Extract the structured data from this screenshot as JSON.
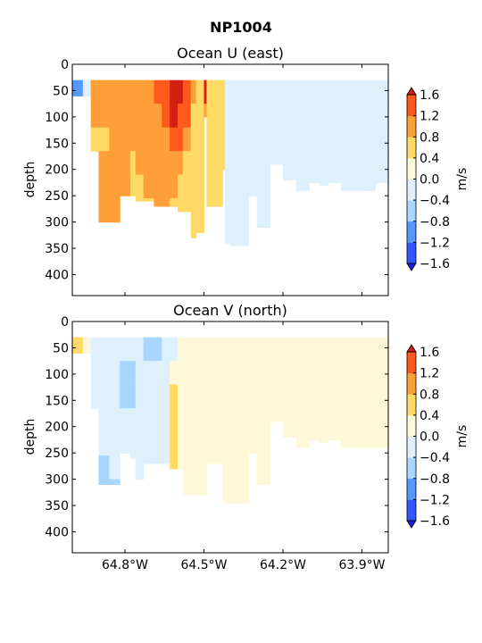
{
  "figure": {
    "suptitle": "NP1004"
  },
  "colors": {
    "levels": [
      -1.6,
      -1.2,
      -0.8,
      -0.4,
      0.0,
      0.4,
      0.8,
      1.2,
      1.6
    ],
    "bands": [
      "#3355ff",
      "#5599ff",
      "#a8d6ff",
      "#ddf0fb",
      "#fff8d8",
      "#ffd966",
      "#ff9f38",
      "#ff5a1c"
    ],
    "under": "#2020dd",
    "over": "#d42010"
  },
  "chart_data": [
    {
      "type": "heatmap",
      "title": "Ocean U (east)",
      "ylabel": "depth",
      "xlabel": "",
      "xlim": [
        -65.0,
        -63.8
      ],
      "ylim": [
        440,
        0
      ],
      "xticks": [
        "64.8°W",
        "64.5°W",
        "64.2°W",
        "63.9°W"
      ],
      "xtick_values": [
        -64.8,
        -64.5,
        -64.2,
        -63.9
      ],
      "yticks": [
        0,
        50,
        100,
        150,
        200,
        250,
        300,
        350,
        400
      ],
      "colorbar": {
        "label": "m/s",
        "ticks": [
          "1.6",
          "1.2",
          "0.8",
          "0.4",
          "0.0",
          "−0.4",
          "−0.8",
          "−1.2",
          "−1.6"
        ]
      },
      "columns": [
        {
          "x0": -65.0,
          "x1": -64.96,
          "depth": 60,
          "values": [
            -1.0
          ]
        },
        {
          "x0": -64.96,
          "x1": -64.93,
          "depth": 60,
          "values": [
            -0.2
          ]
        },
        {
          "x0": -64.93,
          "x1": -64.9,
          "depth": 165,
          "values": [
            1.0,
            0.9,
            0.5,
            0.5
          ]
        },
        {
          "x0": -64.9,
          "x1": -64.86,
          "depth": 300,
          "values": [
            1.0,
            1.0,
            0.6,
            1.0,
            1.0,
            0.9,
            1.0
          ]
        },
        {
          "x0": -64.86,
          "x1": -64.82,
          "depth": 300,
          "values": [
            1.0,
            1.0,
            1.0,
            1.0,
            1.0,
            1.0,
            1.0
          ]
        },
        {
          "x0": -64.82,
          "x1": -64.78,
          "depth": 250,
          "values": [
            0.9,
            1.0,
            1.0,
            1.0,
            1.0,
            0.9
          ]
        },
        {
          "x0": -64.78,
          "x1": -64.76,
          "depth": 250,
          "values": [
            0.9,
            1.0,
            1.0,
            0.5,
            0.5,
            0.5
          ]
        },
        {
          "x0": -64.76,
          "x1": -64.73,
          "depth": 260,
          "values": [
            1.0,
            1.0,
            1.0,
            1.0,
            0.5,
            0.5
          ]
        },
        {
          "x0": -64.73,
          "x1": -64.69,
          "depth": 260,
          "values": [
            1.0,
            1.0,
            1.0,
            1.0,
            1.0,
            0.5
          ]
        },
        {
          "x0": -64.69,
          "x1": -64.66,
          "depth": 270,
          "values": [
            1.4,
            1.0,
            1.0,
            1.0,
            1.0,
            1.0
          ]
        },
        {
          "x0": -64.66,
          "x1": -64.63,
          "depth": 270,
          "values": [
            1.5,
            1.4,
            1.0,
            1.0,
            1.0,
            1.0
          ]
        },
        {
          "x0": -64.63,
          "x1": -64.6,
          "depth": 270,
          "values": [
            1.7,
            1.7,
            1.4,
            1.0,
            1.0,
            0.5
          ]
        },
        {
          "x0": -64.6,
          "x1": -64.58,
          "depth": 280,
          "values": [
            1.7,
            1.5,
            1.3,
            1.0,
            0.5,
            0.5
          ]
        },
        {
          "x0": -64.58,
          "x1": -64.55,
          "depth": 280,
          "values": [
            1.3,
            1.3,
            1.0,
            0.5,
            0.5,
            0.5
          ]
        },
        {
          "x0": -64.55,
          "x1": -64.53,
          "depth": 330,
          "values": [
            1.0,
            0.5,
            0.5,
            0.5,
            0.5,
            0.5,
            0.5
          ]
        },
        {
          "x0": -64.53,
          "x1": -64.5,
          "depth": 320,
          "values": [
            0.5,
            0.5,
            0.5,
            0.5,
            0.5,
            0.5,
            0.5
          ]
        },
        {
          "x0": -64.5,
          "x1": -64.49,
          "depth": 100,
          "values": [
            1.7,
            1.0
          ]
        },
        {
          "x0": -64.49,
          "x1": -64.43,
          "depth": 270,
          "values": [
            0.5,
            0.5,
            0.5,
            0.5,
            0.5,
            0.5
          ]
        },
        {
          "x0": -64.43,
          "x1": -64.42,
          "depth": 200,
          "values": [
            0.5,
            0.5,
            0.5,
            0.5
          ]
        },
        {
          "x0": -64.42,
          "x1": -64.4,
          "depth": 340,
          "values": [
            -0.2,
            -0.2,
            -0.2,
            -0.2,
            -0.2,
            -0.2,
            -0.2
          ]
        },
        {
          "x0": -64.4,
          "x1": -64.33,
          "depth": 345,
          "values": [
            -0.2,
            -0.2,
            -0.2,
            -0.2,
            -0.2,
            -0.2,
            -0.2
          ]
        },
        {
          "x0": -64.33,
          "x1": -64.3,
          "depth": 250,
          "values": [
            -0.2,
            -0.2,
            -0.2,
            -0.2,
            -0.2,
            -0.2
          ]
        },
        {
          "x0": -64.3,
          "x1": -64.25,
          "depth": 310,
          "values": [
            -0.2,
            -0.2,
            -0.2,
            -0.2,
            -0.2,
            -0.2,
            -0.2
          ]
        },
        {
          "x0": -64.25,
          "x1": -64.2,
          "depth": 190,
          "values": [
            -0.2,
            -0.2,
            -0.2,
            -0.2
          ]
        },
        {
          "x0": -64.2,
          "x1": -64.15,
          "depth": 220,
          "values": [
            -0.2,
            -0.2,
            -0.2,
            -0.2,
            -0.2
          ]
        },
        {
          "x0": -64.15,
          "x1": -64.1,
          "depth": 240,
          "values": [
            -0.2,
            -0.2,
            -0.2,
            -0.2,
            -0.2
          ]
        },
        {
          "x0": -64.1,
          "x1": -64.06,
          "depth": 225,
          "values": [
            -0.2,
            -0.2,
            -0.2,
            -0.2,
            -0.2
          ]
        },
        {
          "x0": -64.06,
          "x1": -64.03,
          "depth": 230,
          "values": [
            -0.2,
            -0.2,
            -0.2,
            -0.2,
            -0.2
          ]
        },
        {
          "x0": -64.03,
          "x1": -63.98,
          "depth": 225,
          "values": [
            -0.2,
            -0.2,
            -0.2,
            -0.2,
            -0.2
          ]
        },
        {
          "x0": -63.98,
          "x1": -63.93,
          "depth": 240,
          "values": [
            -0.2,
            -0.2,
            -0.2,
            -0.2,
            -0.2
          ]
        },
        {
          "x0": -63.93,
          "x1": -63.88,
          "depth": 240,
          "values": [
            -0.2,
            -0.2,
            -0.2,
            -0.2,
            -0.2
          ]
        },
        {
          "x0": -63.88,
          "x1": -63.85,
          "depth": 240,
          "values": [
            -0.2,
            -0.2,
            -0.2,
            -0.2,
            -0.2
          ]
        },
        {
          "x0": -63.85,
          "x1": -63.8,
          "depth": 225,
          "values": [
            -0.2,
            -0.2,
            -0.2,
            -0.2,
            -0.2
          ]
        }
      ]
    },
    {
      "type": "heatmap",
      "title": "Ocean V (north)",
      "ylabel": "depth",
      "xlabel": "",
      "xlim": [
        -65.0,
        -63.8
      ],
      "ylim": [
        440,
        0
      ],
      "xticks": [
        "64.8°W",
        "64.5°W",
        "64.2°W",
        "63.9°W"
      ],
      "xtick_values": [
        -64.8,
        -64.5,
        -64.2,
        -63.9
      ],
      "yticks": [
        0,
        50,
        100,
        150,
        200,
        250,
        300,
        350,
        400
      ],
      "colorbar": {
        "label": "m/s",
        "ticks": [
          "1.6",
          "1.2",
          "0.8",
          "0.4",
          "0.0",
          "−0.4",
          "−0.8",
          "−1.2",
          "−1.6"
        ]
      },
      "columns": [
        {
          "x0": -65.0,
          "x1": -64.96,
          "depth": 60,
          "values": [
            0.5
          ]
        },
        {
          "x0": -64.96,
          "x1": -64.93,
          "depth": 60,
          "values": [
            0.2
          ]
        },
        {
          "x0": -64.93,
          "x1": -64.9,
          "depth": 165,
          "values": [
            -0.2,
            -0.2,
            -0.2,
            -0.2
          ]
        },
        {
          "x0": -64.9,
          "x1": -64.86,
          "depth": 310,
          "values": [
            -0.2,
            -0.2,
            -0.2,
            -0.2,
            -0.2,
            -0.6,
            -0.6
          ]
        },
        {
          "x0": -64.86,
          "x1": -64.82,
          "depth": 310,
          "values": [
            -0.2,
            -0.2,
            -0.2,
            -0.2,
            -0.2,
            -0.2,
            -0.6
          ]
        },
        {
          "x0": -64.82,
          "x1": -64.78,
          "depth": 250,
          "values": [
            -0.2,
            -0.6,
            -0.6,
            -0.2,
            -0.2,
            -0.2
          ]
        },
        {
          "x0": -64.78,
          "x1": -64.76,
          "depth": 260,
          "values": [
            -0.2,
            -0.6,
            -0.6,
            -0.2,
            -0.2,
            -0.2
          ]
        },
        {
          "x0": -64.76,
          "x1": -64.73,
          "depth": 300,
          "values": [
            -0.2,
            -0.2,
            -0.2,
            -0.2,
            -0.2,
            -0.2,
            -0.2
          ]
        },
        {
          "x0": -64.73,
          "x1": -64.69,
          "depth": 270,
          "values": [
            -0.6,
            -0.2,
            -0.2,
            -0.2,
            -0.2,
            -0.2
          ]
        },
        {
          "x0": -64.69,
          "x1": -64.66,
          "depth": 270,
          "values": [
            -0.6,
            -0.2,
            -0.2,
            -0.2,
            -0.2,
            -0.2
          ]
        },
        {
          "x0": -64.66,
          "x1": -64.63,
          "depth": 270,
          "values": [
            -0.2,
            -0.2,
            -0.2,
            -0.2,
            -0.2,
            -0.2
          ]
        },
        {
          "x0": -64.63,
          "x1": -64.6,
          "depth": 280,
          "values": [
            -0.2,
            0.2,
            0.5,
            0.5,
            0.5,
            0.5
          ]
        },
        {
          "x0": -64.6,
          "x1": -64.58,
          "depth": 280,
          "values": [
            0.2,
            0.2,
            0.2,
            0.2,
            0.2,
            0.2
          ]
        },
        {
          "x0": -64.58,
          "x1": -64.55,
          "depth": 330,
          "values": [
            0.2,
            0.2,
            0.2,
            0.2,
            0.2,
            0.2,
            0.2
          ]
        },
        {
          "x0": -64.55,
          "x1": -64.49,
          "depth": 330,
          "values": [
            0.2,
            0.2,
            0.2,
            0.2,
            0.2,
            0.2,
            0.2
          ]
        },
        {
          "x0": -64.49,
          "x1": -64.43,
          "depth": 270,
          "values": [
            0.2,
            0.2,
            0.2,
            0.2,
            0.2,
            0.2
          ]
        },
        {
          "x0": -64.43,
          "x1": -64.33,
          "depth": 345,
          "values": [
            0.2,
            0.2,
            0.2,
            0.2,
            0.2,
            0.2,
            0.2
          ]
        },
        {
          "x0": -64.33,
          "x1": -64.3,
          "depth": 250,
          "values": [
            0.2,
            0.2,
            0.2,
            0.2,
            0.2,
            0.2
          ]
        },
        {
          "x0": -64.3,
          "x1": -64.25,
          "depth": 310,
          "values": [
            0.2,
            0.2,
            0.2,
            0.2,
            0.2,
            0.2,
            0.2
          ]
        },
        {
          "x0": -64.25,
          "x1": -64.2,
          "depth": 190,
          "values": [
            0.2,
            0.2,
            0.2,
            0.2
          ]
        },
        {
          "x0": -64.2,
          "x1": -64.15,
          "depth": 220,
          "values": [
            0.2,
            0.2,
            0.2,
            0.2,
            0.2
          ]
        },
        {
          "x0": -64.15,
          "x1": -64.1,
          "depth": 240,
          "values": [
            0.2,
            0.2,
            0.2,
            0.2,
            0.2
          ]
        },
        {
          "x0": -64.1,
          "x1": -64.06,
          "depth": 225,
          "values": [
            0.2,
            0.2,
            0.2,
            0.2,
            0.2
          ]
        },
        {
          "x0": -64.06,
          "x1": -64.03,
          "depth": 230,
          "values": [
            0.2,
            0.2,
            0.2,
            0.2,
            0.2
          ]
        },
        {
          "x0": -64.03,
          "x1": -63.98,
          "depth": 225,
          "values": [
            0.2,
            0.2,
            0.2,
            0.2,
            0.2
          ]
        },
        {
          "x0": -63.98,
          "x1": -63.93,
          "depth": 240,
          "values": [
            0.2,
            0.2,
            0.2,
            0.2,
            0.2
          ]
        },
        {
          "x0": -63.93,
          "x1": -63.8,
          "depth": 240,
          "values": [
            0.2,
            0.2,
            0.2,
            0.2,
            0.2
          ]
        }
      ]
    }
  ]
}
